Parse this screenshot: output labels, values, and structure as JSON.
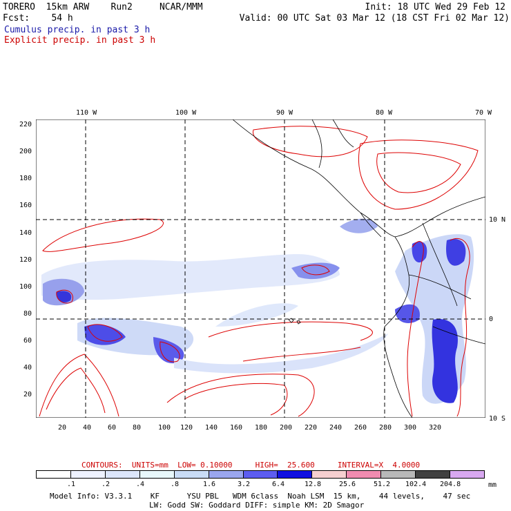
{
  "header": {
    "model": "TORERO  15km ARW    Run2     NCAR/MMM",
    "init": "Init: 18 UTC Wed 29 Feb 12",
    "fcst": "Fcst:    54 h",
    "valid": "Valid: 00 UTC Sat 03 Mar 12 (18 CST Fri 02 Mar 12)",
    "legend_cumulus": "Cumulus precip. in past 3 h",
    "legend_explicit": "Explicit precip. in past 3 h"
  },
  "colors": {
    "cumulus_text": "#1a1aa8",
    "explicit_text": "#cc0000",
    "contour": "#dd0000"
  },
  "axes": {
    "lon_top": [
      "110 W",
      "100 W",
      "90 W",
      "80 W",
      "70 W"
    ],
    "lat_right": [
      "10 N",
      "0",
      "10 S"
    ],
    "y_left": [
      "220",
      "200",
      "180",
      "160",
      "140",
      "120",
      "100",
      "80",
      "60",
      "40",
      "20"
    ],
    "x_bottom": [
      "20",
      "40",
      "60",
      "80",
      "100",
      "120",
      "140",
      "160",
      "180",
      "200",
      "220",
      "240",
      "260",
      "280",
      "300",
      "320"
    ]
  },
  "contours_line": "CONTOURS:  UNITS=mm  LOW= 0.10000     HIGH=  25.600     INTERVAL=X  4.0000",
  "scale": {
    "labels": [
      ".1",
      ".2",
      ".4",
      ".8",
      "1.6",
      "3.2",
      "6.4",
      "12.8",
      "25.6",
      "51.2",
      "102.4",
      "204.8"
    ],
    "unit": "mm",
    "colors": [
      "#ffffff",
      "#eef2ff",
      "#dce6fb",
      "#e8f8fb",
      "#c9dcf6",
      "#9aa6ee",
      "#5d5df0",
      "#1010e0",
      "#f6cfd0",
      "#f08cb0",
      "#b8b8b8",
      "#404040",
      "#d8a8f0"
    ]
  },
  "footer": {
    "line1": "Model Info: V3.3.1    KF      YSU PBL   WDM 6class  Noah LSM  15 km,    44 levels,    47 sec",
    "line2": "LW: Godd SW: Goddard DIFF: simple KM: 2D Smagor"
  }
}
